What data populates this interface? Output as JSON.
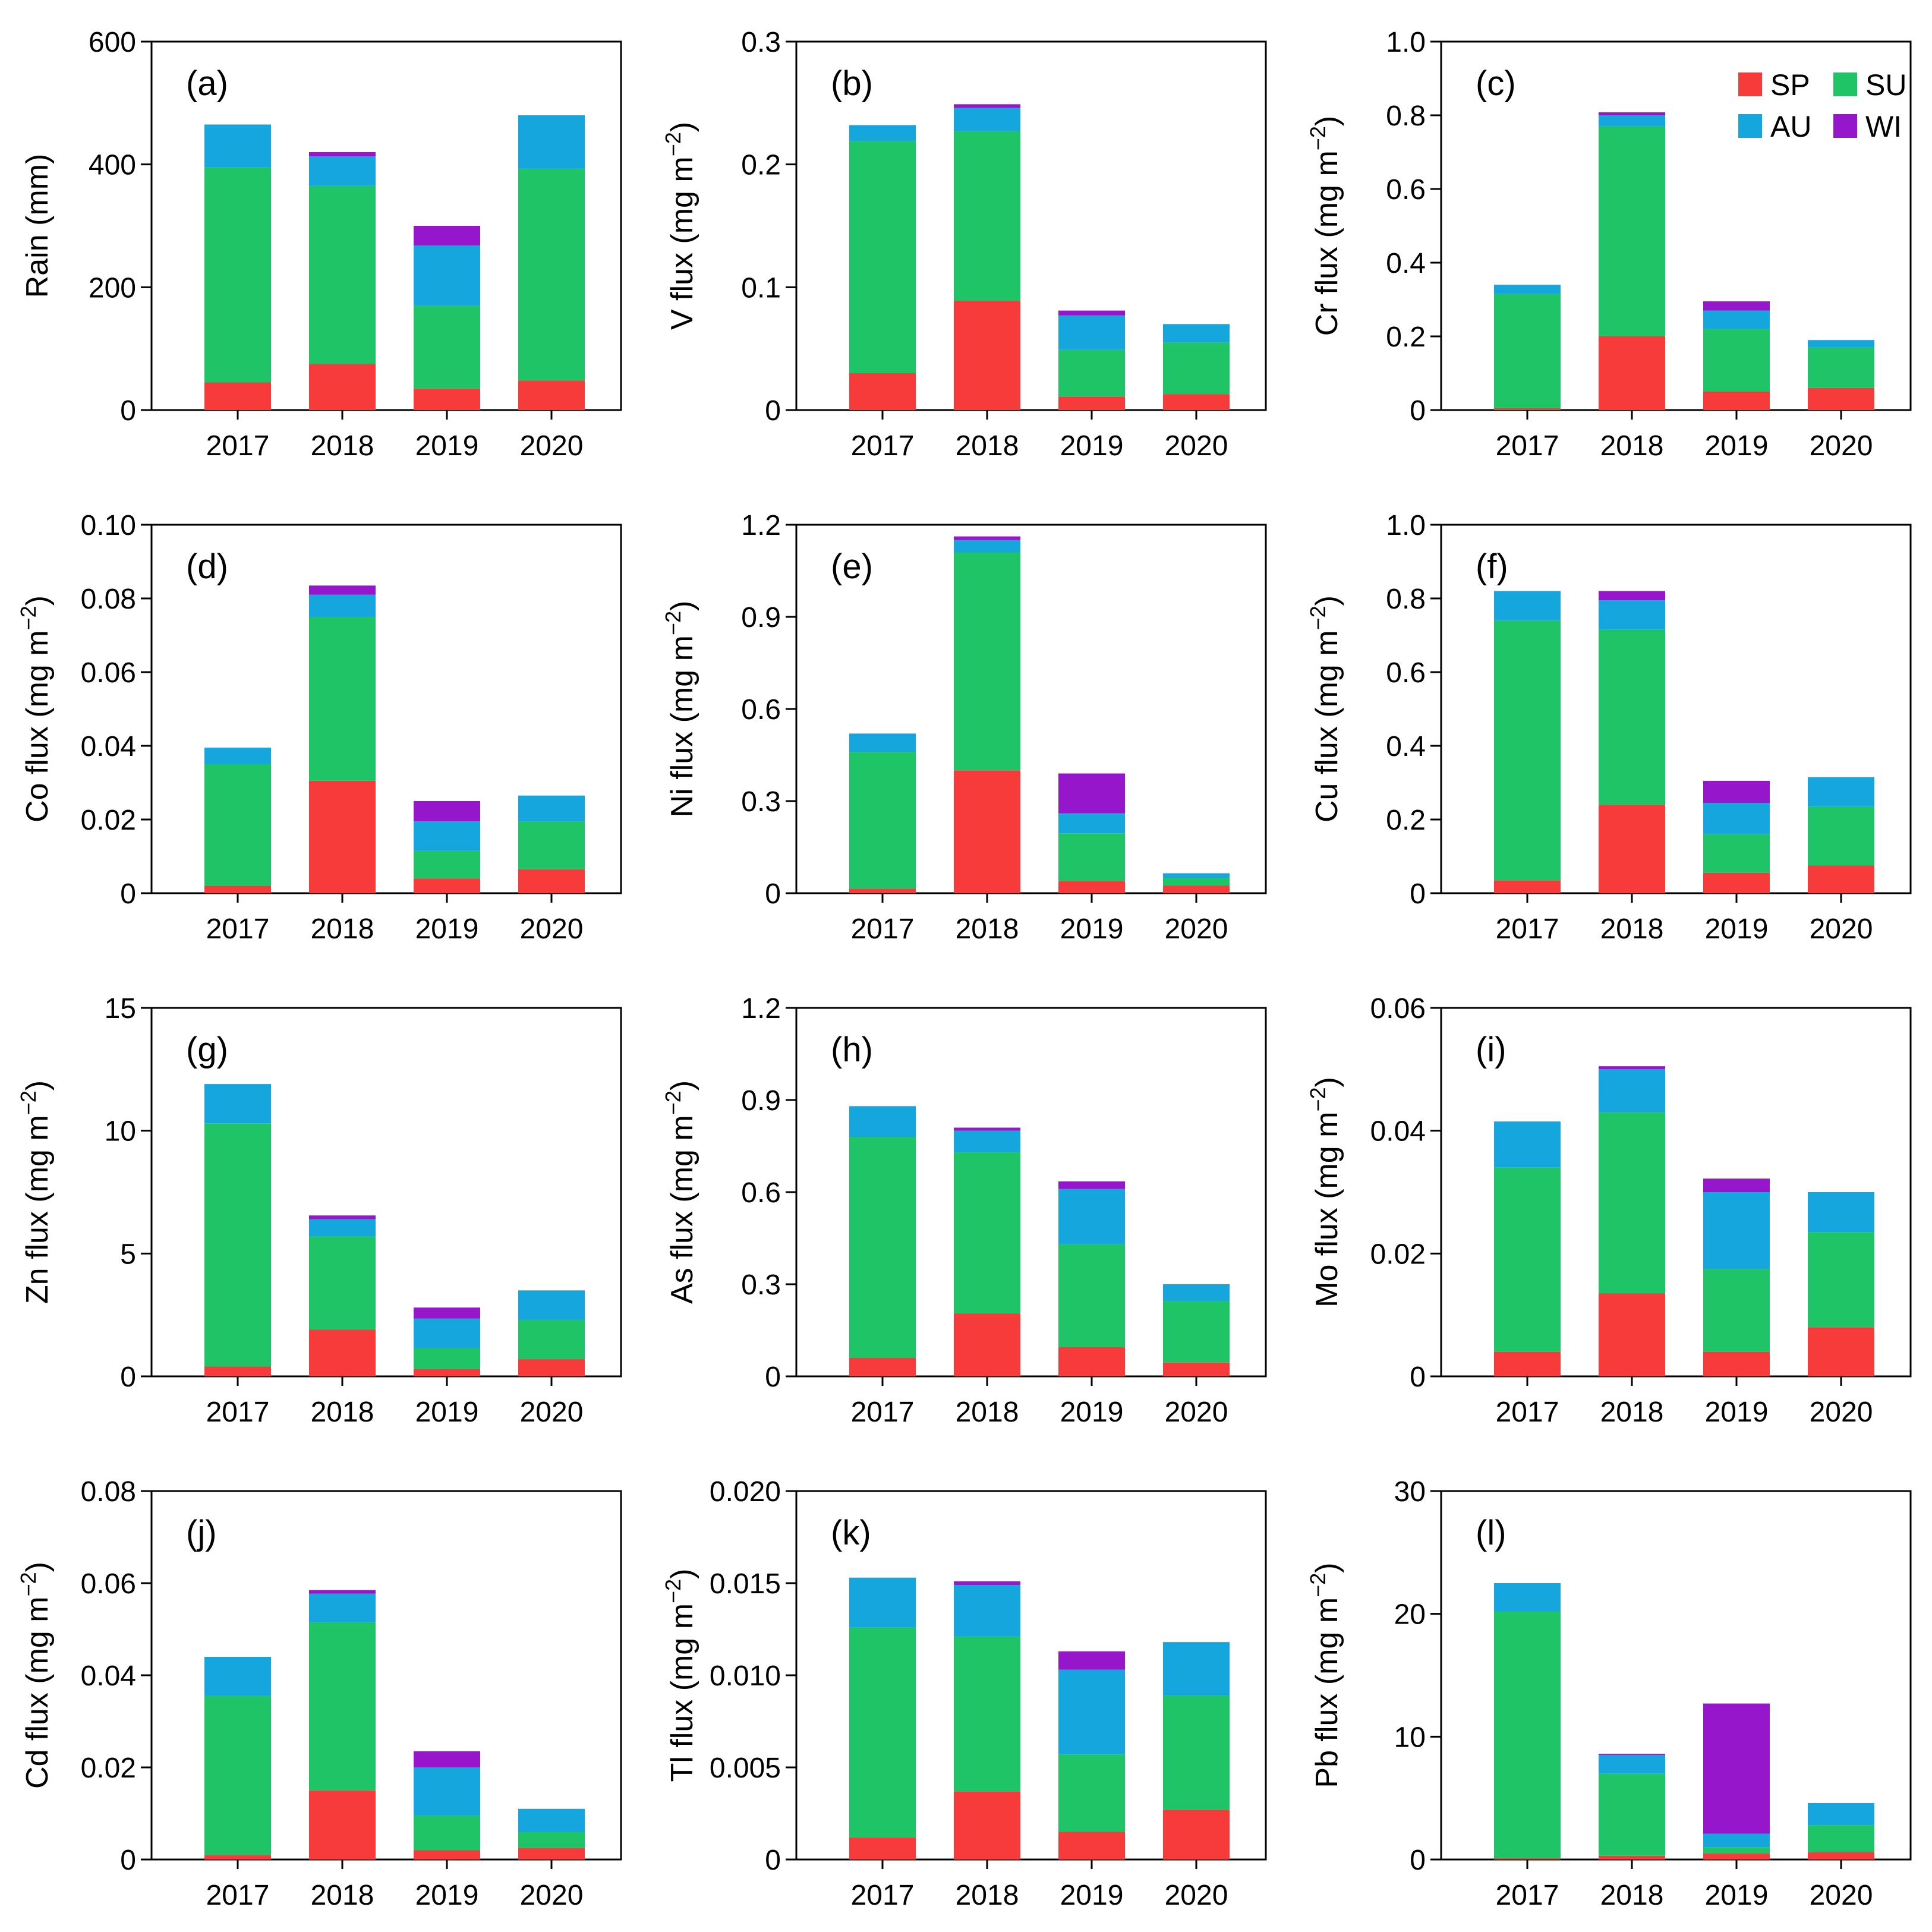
{
  "figure": {
    "season_order": [
      "SP",
      "SU",
      "AU",
      "WI"
    ],
    "season_colors": {
      "SP": "#f73a3a",
      "SU": "#1fc466",
      "AU": "#14a6dd",
      "WI": "#9616cc"
    },
    "legend": [
      {
        "key": "SP",
        "label": "SP"
      },
      {
        "key": "SU",
        "label": "SU"
      },
      {
        "key": "AU",
        "label": "AU"
      },
      {
        "key": "WI",
        "label": "WI"
      }
    ]
  },
  "chart_data": [
    {
      "type": "bar",
      "panel": "(a)",
      "ylabel": "Rain (mm)",
      "unit_sup": "",
      "ylim": [
        0,
        600
      ],
      "yticks": [
        "0",
        "200",
        "400",
        "600"
      ],
      "categories": [
        "2017",
        "2018",
        "2019",
        "2020"
      ],
      "series": [
        {
          "name": "SP",
          "values": [
            45,
            75,
            35,
            48
          ]
        },
        {
          "name": "SU",
          "values": [
            350,
            290,
            135,
            345
          ]
        },
        {
          "name": "AU",
          "values": [
            70,
            48,
            98,
            87
          ]
        },
        {
          "name": "WI",
          "values": [
            0,
            7,
            32,
            0
          ]
        }
      ]
    },
    {
      "type": "bar",
      "panel": "(b)",
      "ylabel": "V flux (mg m",
      "unit_sup": "−2",
      "ylim": [
        0,
        0.3
      ],
      "yticks": [
        "0",
        "0.1",
        "0.2",
        "0.3"
      ],
      "categories": [
        "2017",
        "2018",
        "2019",
        "2020"
      ],
      "series": [
        {
          "name": "SP",
          "values": [
            0.03,
            0.089,
            0.011,
            0.013
          ]
        },
        {
          "name": "SU",
          "values": [
            0.189,
            0.138,
            0.038,
            0.042
          ]
        },
        {
          "name": "AU",
          "values": [
            0.013,
            0.019,
            0.028,
            0.015
          ]
        },
        {
          "name": "WI",
          "values": [
            0,
            0.003,
            0.004,
            0
          ]
        }
      ]
    },
    {
      "type": "bar",
      "panel": "(c)",
      "ylabel": "Cr flux (mg m",
      "unit_sup": "−2",
      "ylim": [
        0,
        1.0
      ],
      "yticks": [
        "0",
        "0.2",
        "0.4",
        "0.6",
        "0.8",
        "1.0"
      ],
      "categories": [
        "2017",
        "2018",
        "2019",
        "2020"
      ],
      "series": [
        {
          "name": "SP",
          "values": [
            0.005,
            0.2,
            0.05,
            0.06
          ]
        },
        {
          "name": "SU",
          "values": [
            0.31,
            0.57,
            0.17,
            0.11
          ]
        },
        {
          "name": "AU",
          "values": [
            0.025,
            0.03,
            0.05,
            0.02
          ]
        },
        {
          "name": "WI",
          "values": [
            0,
            0.008,
            0.025,
            0
          ]
        }
      ]
    },
    {
      "type": "bar",
      "panel": "(d)",
      "ylabel": "Co flux (mg m",
      "unit_sup": "−2",
      "ylim": [
        0,
        0.1
      ],
      "yticks": [
        "0",
        "0.02",
        "0.04",
        "0.06",
        "0.08",
        "0.10"
      ],
      "categories": [
        "2017",
        "2018",
        "2019",
        "2020"
      ],
      "series": [
        {
          "name": "SP",
          "values": [
            0.002,
            0.0305,
            0.004,
            0.0065
          ]
        },
        {
          "name": "SU",
          "values": [
            0.033,
            0.0445,
            0.0075,
            0.013
          ]
        },
        {
          "name": "AU",
          "values": [
            0.0045,
            0.006,
            0.008,
            0.007
          ]
        },
        {
          "name": "WI",
          "values": [
            0,
            0.0025,
            0.0055,
            0
          ]
        }
      ]
    },
    {
      "type": "bar",
      "panel": "(e)",
      "ylabel": "Ni flux (mg m",
      "unit_sup": "−2",
      "ylim": [
        0,
        1.2
      ],
      "yticks": [
        "0",
        "0.3",
        "0.6",
        "0.9",
        "1.2"
      ],
      "categories": [
        "2017",
        "2018",
        "2019",
        "2020"
      ],
      "series": [
        {
          "name": "SP",
          "values": [
            0.015,
            0.4,
            0.04,
            0.025
          ]
        },
        {
          "name": "SU",
          "values": [
            0.445,
            0.71,
            0.155,
            0.025
          ]
        },
        {
          "name": "AU",
          "values": [
            0.06,
            0.04,
            0.065,
            0.015
          ]
        },
        {
          "name": "WI",
          "values": [
            0,
            0.012,
            0.13,
            0
          ]
        }
      ]
    },
    {
      "type": "bar",
      "panel": "(f)",
      "ylabel": "Cu flux (mg m",
      "unit_sup": "−2",
      "ylim": [
        0,
        1.0
      ],
      "yticks": [
        "0",
        "0.2",
        "0.4",
        "0.6",
        "0.8",
        "1.0"
      ],
      "categories": [
        "2017",
        "2018",
        "2019",
        "2020"
      ],
      "series": [
        {
          "name": "SP",
          "values": [
            0.035,
            0.24,
            0.055,
            0.075
          ]
        },
        {
          "name": "SU",
          "values": [
            0.705,
            0.475,
            0.105,
            0.16
          ]
        },
        {
          "name": "AU",
          "values": [
            0.08,
            0.08,
            0.085,
            0.08
          ]
        },
        {
          "name": "WI",
          "values": [
            0,
            0.025,
            0.06,
            0
          ]
        }
      ]
    },
    {
      "type": "bar",
      "panel": "(g)",
      "ylabel": "Zn flux (mg m",
      "unit_sup": "−2",
      "ylim": [
        0,
        15
      ],
      "yticks": [
        "0",
        "5",
        "10",
        "15"
      ],
      "categories": [
        "2017",
        "2018",
        "2019",
        "2020"
      ],
      "series": [
        {
          "name": "SP",
          "values": [
            0.4,
            1.9,
            0.3,
            0.7
          ]
        },
        {
          "name": "SU",
          "values": [
            9.9,
            3.8,
            0.85,
            1.6
          ]
        },
        {
          "name": "AU",
          "values": [
            1.6,
            0.7,
            1.2,
            1.2
          ]
        },
        {
          "name": "WI",
          "values": [
            0,
            0.15,
            0.45,
            0
          ]
        }
      ]
    },
    {
      "type": "bar",
      "panel": "(h)",
      "ylabel": "As flux (mg m",
      "unit_sup": "−2",
      "ylim": [
        0,
        1.2
      ],
      "yticks": [
        "0",
        "0.3",
        "0.6",
        "0.9",
        "1.2"
      ],
      "categories": [
        "2017",
        "2018",
        "2019",
        "2020"
      ],
      "series": [
        {
          "name": "SP",
          "values": [
            0.06,
            0.205,
            0.095,
            0.045
          ]
        },
        {
          "name": "SU",
          "values": [
            0.72,
            0.525,
            0.335,
            0.2
          ]
        },
        {
          "name": "AU",
          "values": [
            0.1,
            0.07,
            0.18,
            0.055
          ]
        },
        {
          "name": "WI",
          "values": [
            0,
            0.01,
            0.025,
            0
          ]
        }
      ]
    },
    {
      "type": "bar",
      "panel": "(i)",
      "ylabel": "Mo flux (mg m",
      "unit_sup": "−2",
      "ylim": [
        0,
        0.06
      ],
      "yticks": [
        "0",
        "0.02",
        "0.04",
        "0.06"
      ],
      "categories": [
        "2017",
        "2018",
        "2019",
        "2020"
      ],
      "series": [
        {
          "name": "SP",
          "values": [
            0.004,
            0.0135,
            0.004,
            0.008
          ]
        },
        {
          "name": "SU",
          "values": [
            0.03,
            0.0295,
            0.0135,
            0.0155
          ]
        },
        {
          "name": "AU",
          "values": [
            0.0075,
            0.007,
            0.0125,
            0.0065
          ]
        },
        {
          "name": "WI",
          "values": [
            0,
            0.0005,
            0.0022,
            0
          ]
        }
      ]
    },
    {
      "type": "bar",
      "panel": "(j)",
      "ylabel": "Cd flux (mg m",
      "unit_sup": "−2",
      "ylim": [
        0,
        0.08
      ],
      "yticks": [
        "0",
        "0.02",
        "0.04",
        "0.06",
        "0.08"
      ],
      "categories": [
        "2017",
        "2018",
        "2019",
        "2020"
      ],
      "series": [
        {
          "name": "SP",
          "values": [
            0.001,
            0.015,
            0.002,
            0.0025
          ]
        },
        {
          "name": "SU",
          "values": [
            0.0345,
            0.0365,
            0.0075,
            0.0035
          ]
        },
        {
          "name": "AU",
          "values": [
            0.0085,
            0.0062,
            0.0105,
            0.005
          ]
        },
        {
          "name": "WI",
          "values": [
            0,
            0.0008,
            0.0035,
            0
          ]
        }
      ]
    },
    {
      "type": "bar",
      "panel": "(k)",
      "ylabel": "Tl flux (mg m",
      "unit_sup": "−2",
      "ylim": [
        0,
        0.02
      ],
      "yticks": [
        "0",
        "0.005",
        "0.010",
        "0.015",
        "0.020"
      ],
      "categories": [
        "2017",
        "2018",
        "2019",
        "2020"
      ],
      "series": [
        {
          "name": "SP",
          "values": [
            0.0012,
            0.0037,
            0.0015,
            0.0027
          ]
        },
        {
          "name": "SU",
          "values": [
            0.0114,
            0.0084,
            0.0042,
            0.0062
          ]
        },
        {
          "name": "AU",
          "values": [
            0.0027,
            0.0028,
            0.0046,
            0.0029
          ]
        },
        {
          "name": "WI",
          "values": [
            0,
            0.0002,
            0.001,
            0
          ]
        }
      ]
    },
    {
      "type": "bar",
      "panel": "(l)",
      "ylabel": "Pb flux (mg m",
      "unit_sup": "−2",
      "ylim": [
        0,
        30
      ],
      "yticks": [
        "0",
        "10",
        "20",
        "30"
      ],
      "categories": [
        "2017",
        "2018",
        "2019",
        "2020"
      ],
      "series": [
        {
          "name": "SP",
          "values": [
            0.1,
            0.3,
            0.5,
            0.6
          ]
        },
        {
          "name": "SU",
          "values": [
            20.1,
            6.7,
            0.5,
            2.2
          ]
        },
        {
          "name": "AU",
          "values": [
            2.3,
            1.5,
            1.1,
            1.8
          ]
        },
        {
          "name": "WI",
          "values": [
            0,
            0.1,
            10.6,
            0
          ]
        }
      ]
    }
  ]
}
